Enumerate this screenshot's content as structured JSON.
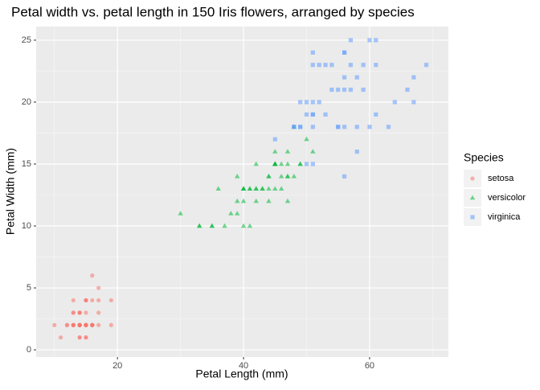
{
  "chart_data": {
    "type": "scatter",
    "title": "Petal width vs. petal length in 150 Iris flowers, arranged by species",
    "x_label": "Petal Length (mm)",
    "y_label": "Petal Width (mm)",
    "legend_title": "Species",
    "legend_position": "right",
    "grid": true,
    "xlim": [
      7.1,
      72.5
    ],
    "xticks": [
      20,
      40,
      60
    ],
    "ylim": [
      -0.58,
      26.1
    ],
    "yticks": [
      0,
      5,
      10,
      15,
      20,
      25
    ],
    "series": [
      {
        "name": "setosa",
        "color": "#F8766D",
        "shape": "circle",
        "x": [
          14,
          14,
          13,
          15,
          14,
          17,
          14,
          15,
          14,
          15,
          15,
          16,
          14,
          11,
          12,
          15,
          13,
          14,
          17,
          15,
          17,
          15,
          10,
          17,
          19,
          16,
          16,
          15,
          14,
          16,
          16,
          15,
          15,
          14,
          15,
          12,
          13,
          14,
          13,
          15,
          13,
          13,
          13,
          16,
          19,
          14,
          16,
          14,
          15,
          14
        ],
        "y": [
          2,
          2,
          2,
          2,
          2,
          4,
          3,
          2,
          2,
          1,
          2,
          2,
          1,
          1,
          2,
          4,
          4,
          3,
          3,
          3,
          2,
          4,
          2,
          5,
          2,
          2,
          4,
          2,
          2,
          2,
          2,
          4,
          1,
          2,
          2,
          2,
          2,
          1,
          2,
          2,
          3,
          3,
          2,
          6,
          4,
          3,
          2,
          2,
          2,
          2
        ]
      },
      {
        "name": "versicolor",
        "color": "#00BA38",
        "shape": "triangle",
        "x": [
          47,
          45,
          49,
          40,
          46,
          45,
          47,
          33,
          46,
          39,
          35,
          42,
          40,
          47,
          36,
          44,
          45,
          41,
          45,
          39,
          48,
          40,
          49,
          47,
          43,
          44,
          48,
          50,
          45,
          35,
          38,
          37,
          39,
          51,
          45,
          45,
          47,
          44,
          41,
          40,
          44,
          46,
          40,
          33,
          42,
          42,
          42,
          43,
          30,
          41
        ],
        "y": [
          14,
          15,
          15,
          13,
          15,
          13,
          16,
          10,
          13,
          14,
          10,
          15,
          10,
          14,
          13,
          14,
          15,
          10,
          15,
          11,
          18,
          13,
          15,
          12,
          13,
          14,
          14,
          17,
          15,
          10,
          11,
          10,
          12,
          16,
          15,
          16,
          15,
          13,
          13,
          13,
          12,
          14,
          12,
          10,
          13,
          12,
          13,
          13,
          11,
          13
        ]
      },
      {
        "name": "virginica",
        "color": "#619CFF",
        "shape": "square",
        "x": [
          60,
          51,
          59,
          56,
          58,
          66,
          45,
          63,
          58,
          61,
          51,
          53,
          55,
          50,
          51,
          53,
          55,
          67,
          69,
          50,
          57,
          49,
          67,
          49,
          57,
          60,
          48,
          49,
          56,
          58,
          61,
          64,
          56,
          51,
          56,
          61,
          56,
          55,
          48,
          54,
          56,
          51,
          51,
          59,
          57,
          52,
          50,
          52,
          54,
          51
        ],
        "y": [
          25,
          19,
          21,
          18,
          22,
          21,
          17,
          18,
          18,
          25,
          20,
          19,
          21,
          20,
          24,
          23,
          18,
          22,
          23,
          15,
          23,
          20,
          20,
          18,
          21,
          18,
          18,
          18,
          21,
          16,
          19,
          20,
          22,
          15,
          14,
          23,
          24,
          18,
          18,
          21,
          24,
          23,
          19,
          23,
          25,
          23,
          19,
          20,
          23,
          18
        ]
      }
    ]
  }
}
